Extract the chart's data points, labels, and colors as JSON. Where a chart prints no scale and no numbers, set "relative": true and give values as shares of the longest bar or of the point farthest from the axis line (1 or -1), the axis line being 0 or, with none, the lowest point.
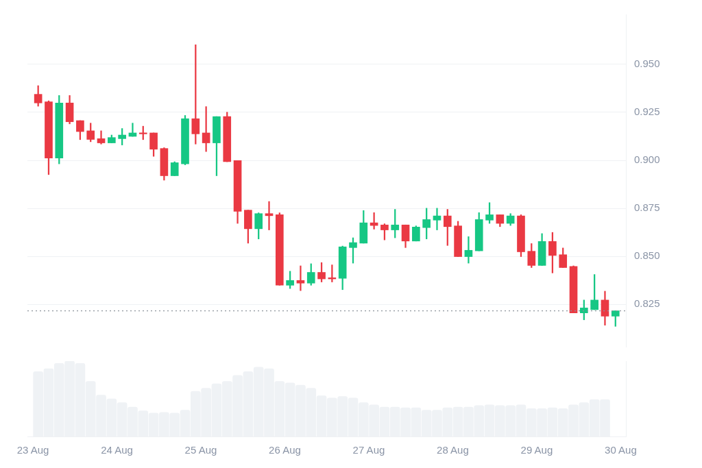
{
  "chart_data": [
    {
      "type": "candlestick",
      "x": [
        "--08-23T01:30",
        "--08-23T04:30",
        "--08-23T07:30",
        "--08-23T10:30",
        "--08-23T13:30",
        "--08-23T16:30",
        "--08-23T19:30",
        "--08-23T22:30",
        "--08-24T01:30",
        "--08-24T04:30",
        "--08-24T07:30",
        "--08-24T10:30",
        "--08-24T13:30",
        "--08-24T16:30",
        "--08-24T19:30",
        "--08-24T22:30",
        "--08-25T01:30",
        "--08-25T04:30",
        "--08-25T07:30",
        "--08-25T10:30",
        "--08-25T13:30",
        "--08-25T16:30",
        "--08-25T19:30",
        "--08-25T22:30",
        "--08-26T01:30",
        "--08-26T04:30",
        "--08-26T07:30",
        "--08-26T10:30",
        "--08-26T13:30",
        "--08-26T16:30",
        "--08-26T19:30",
        "--08-26T22:30",
        "--08-27T01:30",
        "--08-27T04:30",
        "--08-27T07:30",
        "--08-27T10:30",
        "--08-27T13:30",
        "--08-27T16:30",
        "--08-27T19:30",
        "--08-27T22:30",
        "--08-28T01:30",
        "--08-28T04:30",
        "--08-28T07:30",
        "--08-28T10:30",
        "--08-28T13:30",
        "--08-28T16:30",
        "--08-28T19:30",
        "--08-28T22:30",
        "--08-29T01:30",
        "--08-29T04:30",
        "--08-29T07:30",
        "--08-29T10:30",
        "--08-29T13:30",
        "--08-29T16:30",
        "--08-29T19:30",
        "--08-29T22:30"
      ],
      "ohlc": [
        [
          0.9344,
          0.9389,
          0.9282,
          0.9299
        ],
        [
          0.9305,
          0.931,
          0.8926,
          0.9012
        ],
        [
          0.9012,
          0.9338,
          0.8982,
          0.9299
        ],
        [
          0.9299,
          0.9338,
          0.919,
          0.9201
        ],
        [
          0.9207,
          0.9207,
          0.9108,
          0.915
        ],
        [
          0.9154,
          0.9194,
          0.9097,
          0.9109
        ],
        [
          0.9113,
          0.9154,
          0.9085,
          0.9091
        ],
        [
          0.9091,
          0.9132,
          0.9091,
          0.9119
        ],
        [
          0.9113,
          0.9166,
          0.908,
          0.9132
        ],
        [
          0.9125,
          0.9194,
          0.9125,
          0.9143
        ],
        [
          0.9143,
          0.9178,
          0.9108,
          0.9138
        ],
        [
          0.9143,
          0.9143,
          0.9021,
          0.9058
        ],
        [
          0.9062,
          0.9066,
          0.8897,
          0.892
        ],
        [
          0.892,
          0.8993,
          0.892,
          0.8988
        ],
        [
          0.8982,
          0.9234,
          0.8977,
          0.9217
        ],
        [
          0.9217,
          0.9602,
          0.9085,
          0.9138
        ],
        [
          0.9143,
          0.928,
          0.9046,
          0.9091
        ],
        [
          0.9091,
          0.9228,
          0.892,
          0.9228
        ],
        [
          0.9228,
          0.9251,
          0.8993,
          0.8993
        ],
        [
          0.8999,
          0.8999,
          0.8672,
          0.8735
        ],
        [
          0.8741,
          0.8741,
          0.8569,
          0.8644
        ],
        [
          0.8644,
          0.8727,
          0.8591,
          0.8723
        ],
        [
          0.8723,
          0.8786,
          0.8638,
          0.8712
        ],
        [
          0.8717,
          0.8727,
          0.835,
          0.835
        ],
        [
          0.835,
          0.8423,
          0.8333,
          0.8375
        ],
        [
          0.8375,
          0.8451,
          0.8322,
          0.8361
        ],
        [
          0.8361,
          0.8462,
          0.835,
          0.8417
        ],
        [
          0.8417,
          0.8468,
          0.8367,
          0.8383
        ],
        [
          0.8389,
          0.8456,
          0.8367,
          0.8383
        ],
        [
          0.8386,
          0.8554,
          0.8327,
          0.855
        ],
        [
          0.8546,
          0.8597,
          0.8465,
          0.8572
        ],
        [
          0.8569,
          0.8739,
          0.8569,
          0.8675
        ],
        [
          0.8675,
          0.8728,
          0.8642,
          0.8661
        ],
        [
          0.8664,
          0.867,
          0.8586,
          0.8638
        ],
        [
          0.8638,
          0.8745,
          0.8597,
          0.8664
        ],
        [
          0.8664,
          0.8664,
          0.8546,
          0.858
        ],
        [
          0.858,
          0.8659,
          0.858,
          0.8653
        ],
        [
          0.865,
          0.8751,
          0.8591,
          0.8692
        ],
        [
          0.8689,
          0.8751,
          0.8638,
          0.8711
        ],
        [
          0.8711,
          0.8745,
          0.8557,
          0.8655
        ],
        [
          0.8659,
          0.8683,
          0.8499,
          0.8499
        ],
        [
          0.8499,
          0.8603,
          0.8465,
          0.8532
        ],
        [
          0.8529,
          0.8728,
          0.8529,
          0.8692
        ],
        [
          0.8689,
          0.878,
          0.8672,
          0.8717
        ],
        [
          0.8717,
          0.8717,
          0.8655,
          0.8672
        ],
        [
          0.8672,
          0.8723,
          0.8661,
          0.8711
        ],
        [
          0.8711,
          0.8717,
          0.8499,
          0.8524
        ],
        [
          0.8527,
          0.8567,
          0.8442,
          0.8453
        ],
        [
          0.8453,
          0.8619,
          0.8453,
          0.8578
        ],
        [
          0.8578,
          0.8625,
          0.8414,
          0.8505
        ],
        [
          0.8509,
          0.8544,
          0.8442,
          0.8442
        ],
        [
          0.8448,
          0.8451,
          0.8206,
          0.8206
        ],
        [
          0.8206,
          0.8273,
          0.817,
          0.8232
        ],
        [
          0.8223,
          0.8406,
          0.8223,
          0.8273
        ],
        [
          0.8273,
          0.8319,
          0.8142,
          0.8189
        ],
        [
          0.8189,
          0.8217,
          0.8136,
          0.8217
        ]
      ],
      "colors": [
        "#ea3943",
        "#ea3943",
        "#16c784",
        "#ea3943",
        "#ea3943",
        "#ea3943",
        "#ea3943",
        "#16c784",
        "#16c784",
        "#16c784",
        "#ea3943",
        "#ea3943",
        "#ea3943",
        "#16c784",
        "#16c784",
        "#ea3943",
        "#ea3943",
        "#16c784",
        "#ea3943",
        "#ea3943",
        "#ea3943",
        "#16c784",
        "#ea3943",
        "#ea3943",
        "#16c784",
        "#ea3943",
        "#16c784",
        "#ea3943",
        "#ea3943",
        "#16c784",
        "#16c784",
        "#16c784",
        "#ea3943",
        "#ea3943",
        "#16c784",
        "#ea3943",
        "#16c784",
        "#16c784",
        "#16c784",
        "#ea3943",
        "#ea3943",
        "#16c784",
        "#16c784",
        "#16c784",
        "#ea3943",
        "#16c784",
        "#ea3943",
        "#ea3943",
        "#16c784",
        "#ea3943",
        "#ea3943",
        "#ea3943",
        "#16c784",
        "#16c784",
        "#ea3943",
        "#16c784"
      ],
      "xlim": [
        "--08-22T22:26",
        "--08-30T01:29"
      ],
      "ylim": [
        0.803,
        0.976
      ],
      "yticks": [
        {
          "value": 0.825,
          "label": "0.825"
        },
        {
          "value": 0.85,
          "label": "0.850"
        },
        {
          "value": 0.875,
          "label": "0.875"
        },
        {
          "value": 0.9,
          "label": "0.900"
        },
        {
          "value": 0.925,
          "label": "0.925"
        },
        {
          "value": 0.95,
          "label": "0.950"
        }
      ],
      "ref_lines": [
        {
          "axis": "y",
          "value": 0.8217,
          "color": "#8d949c",
          "line_style": "dotted"
        }
      ],
      "grid": "y",
      "legend": false,
      "tick_labels": "y"
    },
    {
      "type": "bar",
      "relative": true,
      "color": "#eff2f5",
      "x": [
        "--08-23T01:30",
        "--08-23T04:30",
        "--08-23T07:30",
        "--08-23T10:30",
        "--08-23T13:30",
        "--08-23T16:30",
        "--08-23T19:30",
        "--08-23T22:30",
        "--08-24T01:30",
        "--08-24T04:30",
        "--08-24T07:30",
        "--08-24T10:30",
        "--08-24T13:30",
        "--08-24T16:30",
        "--08-24T19:30",
        "--08-24T22:30",
        "--08-25T01:30",
        "--08-25T04:30",
        "--08-25T07:30",
        "--08-25T10:30",
        "--08-25T13:30",
        "--08-25T16:30",
        "--08-25T19:30",
        "--08-25T22:30",
        "--08-26T01:30",
        "--08-26T04:30",
        "--08-26T07:30",
        "--08-26T10:30",
        "--08-26T13:30",
        "--08-26T16:30",
        "--08-26T19:30",
        "--08-26T22:30",
        "--08-27T01:30",
        "--08-27T04:30",
        "--08-27T07:30",
        "--08-27T10:30",
        "--08-27T13:30",
        "--08-27T16:30",
        "--08-27T19:30",
        "--08-27T22:30",
        "--08-28T01:30",
        "--08-28T04:30",
        "--08-28T07:30",
        "--08-28T10:30",
        "--08-28T13:30",
        "--08-28T16:30",
        "--08-28T19:30",
        "--08-28T22:30",
        "--08-29T01:30",
        "--08-29T04:30",
        "--08-29T07:30",
        "--08-29T10:30",
        "--08-29T13:30",
        "--08-29T16:30",
        "--08-29T19:30"
      ],
      "values": [
        0.86,
        0.9,
        0.97,
        1,
        0.97,
        0.73,
        0.55,
        0.5,
        0.45,
        0.39,
        0.34,
        0.31,
        0.32,
        0.31,
        0.35,
        0.6,
        0.64,
        0.7,
        0.73,
        0.81,
        0.86,
        0.92,
        0.9,
        0.73,
        0.71,
        0.68,
        0.64,
        0.54,
        0.51,
        0.53,
        0.51,
        0.45,
        0.42,
        0.39,
        0.39,
        0.38,
        0.38,
        0.35,
        0.35,
        0.38,
        0.39,
        0.39,
        0.41,
        0.42,
        0.41,
        0.41,
        0.42,
        0.37,
        0.37,
        0.38,
        0.37,
        0.42,
        0.45,
        0.49,
        0.49
      ],
      "xlim": [
        "--08-22T22:26",
        "--08-30T01:29"
      ],
      "xticks": [
        {
          "value": "--08-23",
          "label": "23 Aug"
        },
        {
          "value": "--08-24",
          "label": "24 Aug"
        },
        {
          "value": "--08-25",
          "label": "25 Aug"
        },
        {
          "value": "--08-26",
          "label": "26 Aug"
        },
        {
          "value": "--08-27",
          "label": "27 Aug"
        },
        {
          "value": "--08-28",
          "label": "28 Aug"
        },
        {
          "value": "--08-29",
          "label": "29 Aug"
        },
        {
          "value": "--08-30",
          "label": "30 Aug"
        }
      ],
      "grid": false,
      "legend": false
    }
  ]
}
